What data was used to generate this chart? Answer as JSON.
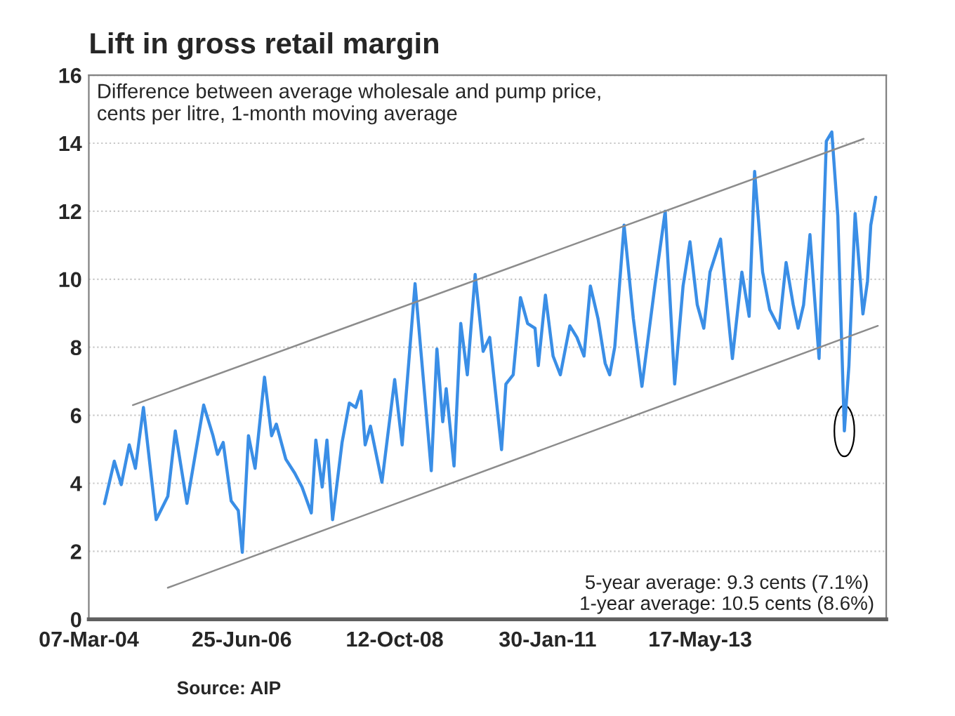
{
  "chart_data": {
    "type": "line",
    "title": "Lift in gross retail margin",
    "subtitle": "Difference between average wholesale and pump price,\ncents per litre, 1-month moving average",
    "annotations": [
      "5-year average: 9.3 cents (7.1%)\n1-year average: 10.5 cents (8.6%)",
      "Source: AIP"
    ],
    "xlim": [
      "2004-03-07",
      "2016-03-04"
    ],
    "xticks": [
      {
        "value": "2004-03-07",
        "label": "07-Mar-04"
      },
      {
        "value": "2006-06-25",
        "label": "25-Jun-06"
      },
      {
        "value": "2008-10-12",
        "label": "12-Oct-08"
      },
      {
        "value": "2011-01-30",
        "label": "30-Jan-11"
      },
      {
        "value": "2013-05-17",
        "label": "17-May-13"
      }
    ],
    "ylim": [
      0,
      16
    ],
    "yticks": [
      0,
      2,
      4,
      6,
      8,
      10,
      12,
      14,
      16
    ],
    "grid": "y",
    "legend": false,
    "series": [
      {
        "color": "#3a8ee6",
        "x": [
          "2004-06-01",
          "2004-07-25",
          "2004-09-01",
          "2004-10-15",
          "2004-11-18",
          "2005-01-01",
          "2005-03-12",
          "2005-05-15",
          "2005-06-25",
          "2005-08-28",
          "2005-11-28",
          "2006-01-18",
          "2006-02-12",
          "2006-03-15",
          "2006-04-28",
          "2006-06-06",
          "2006-06-28",
          "2006-08-01",
          "2006-09-06",
          "2006-10-28",
          "2006-12-06",
          "2007-01-01",
          "2007-02-22",
          "2007-04-12",
          "2007-05-22",
          "2007-07-12",
          "2007-08-06",
          "2007-09-10",
          "2007-10-06",
          "2007-11-06",
          "2007-12-28",
          "2008-02-06",
          "2008-03-12",
          "2008-04-10",
          "2008-05-03",
          "2008-06-01",
          "2008-08-03",
          "2008-10-12",
          "2008-11-22",
          "2009-02-01",
          "2009-05-01",
          "2009-06-01",
          "2009-07-03",
          "2009-07-22",
          "2009-09-03",
          "2009-10-10",
          "2009-11-15",
          "2009-12-28",
          "2010-02-10",
          "2010-03-18",
          "2010-05-22",
          "2010-06-15",
          "2010-07-25",
          "2010-09-03",
          "2010-10-12",
          "2010-11-22",
          "2010-12-10",
          "2011-01-18",
          "2011-03-01",
          "2011-04-10",
          "2011-06-01",
          "2011-07-10",
          "2011-08-18",
          "2011-09-22",
          "2011-11-03",
          "2011-12-12",
          "2012-01-06",
          "2012-02-03",
          "2012-03-25",
          "2012-05-15",
          "2012-07-01",
          "2012-09-10",
          "2012-11-06",
          "2012-12-28",
          "2013-02-12",
          "2013-03-22",
          "2013-05-01",
          "2013-06-06",
          "2013-07-10",
          "2013-09-06",
          "2013-11-10",
          "2014-01-01",
          "2014-02-10",
          "2014-03-12",
          "2014-04-25",
          "2014-06-03",
          "2014-07-25",
          "2014-09-01",
          "2014-10-10",
          "2014-11-06",
          "2014-12-06",
          "2015-01-10",
          "2015-03-01",
          "2015-04-10",
          "2015-05-10",
          "2015-06-12",
          "2015-07-18",
          "2015-08-12",
          "2015-09-15",
          "2015-10-28",
          "2015-11-22",
          "2015-12-10",
          "2016-01-06"
        ],
        "values": [
          3.4,
          4.65,
          3.96,
          5.13,
          4.44,
          6.23,
          2.93,
          3.62,
          5.54,
          3.41,
          6.3,
          5.4,
          4.85,
          5.2,
          3.48,
          3.2,
          1.97,
          5.4,
          4.44,
          7.12,
          5.4,
          5.74,
          4.71,
          4.3,
          3.89,
          3.13,
          5.27,
          3.89,
          5.27,
          2.93,
          5.2,
          6.36,
          6.23,
          6.71,
          5.13,
          5.68,
          4.03,
          7.05,
          5.13,
          9.87,
          4.37,
          7.95,
          5.81,
          6.78,
          4.51,
          8.7,
          7.19,
          10.14,
          7.88,
          8.29,
          4.99,
          6.92,
          7.19,
          9.46,
          8.7,
          8.56,
          7.46,
          9.53,
          7.74,
          7.19,
          8.63,
          8.29,
          7.74,
          9.8,
          8.84,
          7.53,
          7.19,
          8.01,
          11.59,
          8.84,
          6.85,
          9.8,
          12.0,
          6.92,
          9.8,
          11.1,
          9.25,
          8.56,
          10.21,
          11.18,
          7.67,
          10.21,
          8.91,
          13.17,
          10.21,
          9.11,
          8.56,
          10.49,
          9.25,
          8.56,
          9.25,
          11.31,
          7.67,
          14.06,
          14.33,
          11.86,
          5.54,
          7.46,
          11.93,
          8.98,
          9.94,
          11.59,
          12.41
        ]
      },
      {
        "color": "#8c8c8c",
        "x": [
          "2004-11-04",
          "2015-11-01"
        ],
        "values": [
          6.3,
          14.13
        ]
      },
      {
        "color": "#8c8c8c",
        "x": [
          "2005-05-15",
          "2016-01-18"
        ],
        "values": [
          0.93,
          8.63
        ]
      }
    ]
  }
}
